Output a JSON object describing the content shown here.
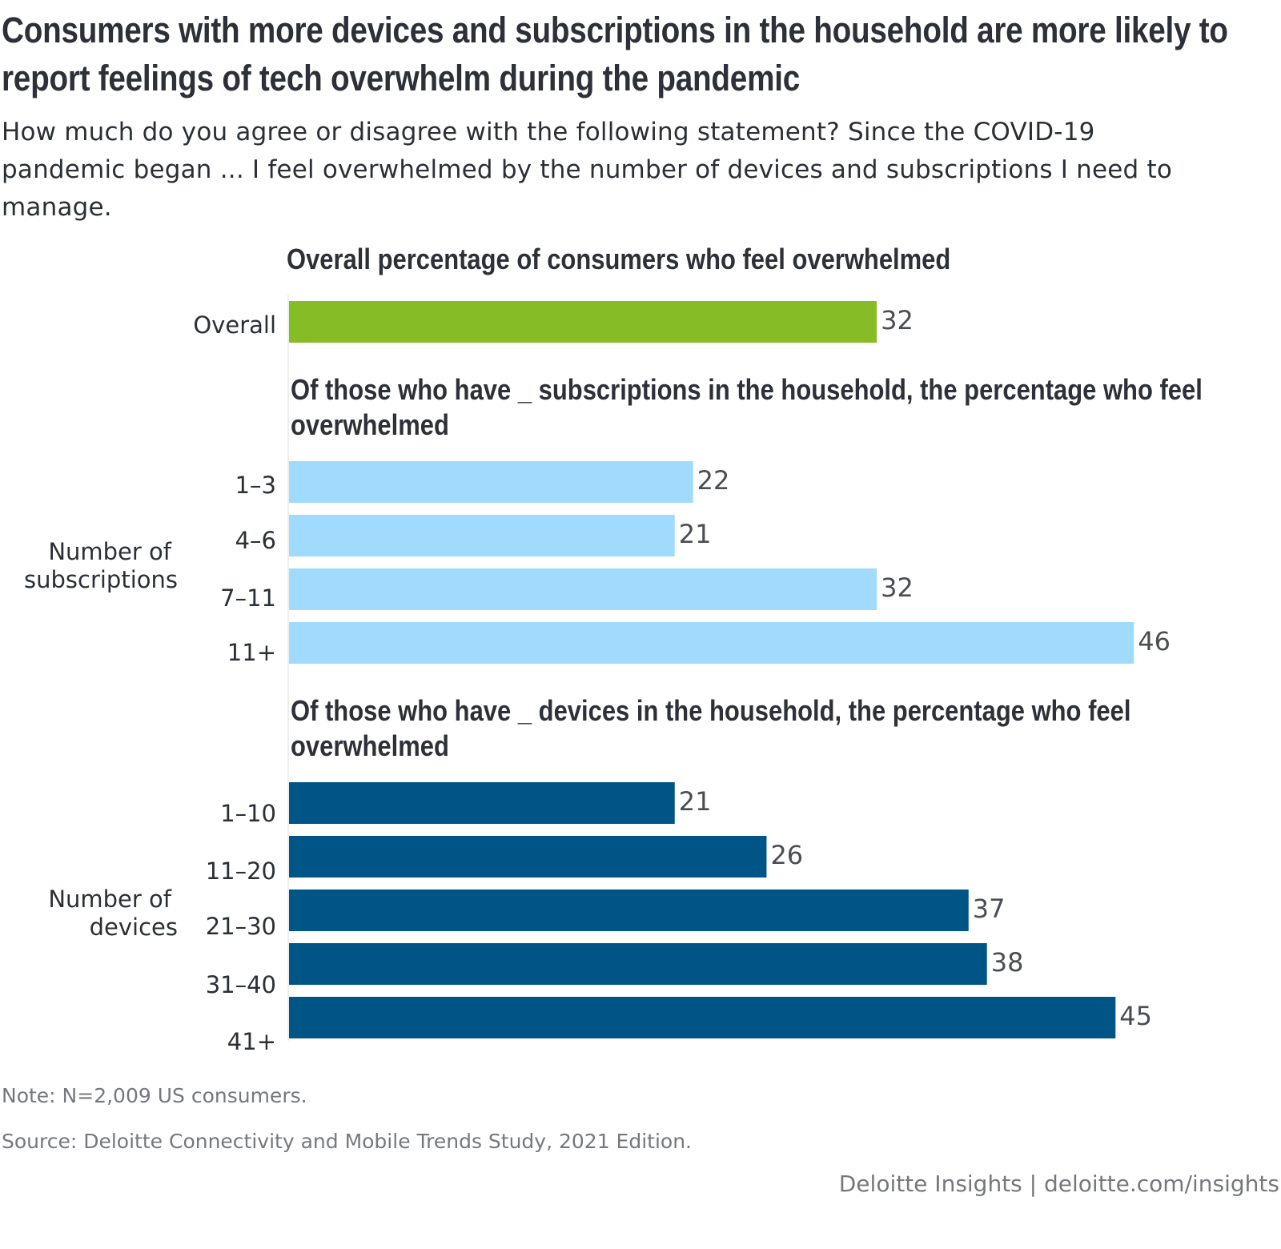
{
  "chart_data": {
    "type": "bar",
    "orientation": "horizontal",
    "title": "Consumers with more devices and subscriptions in the household are more likely to report feelings of tech overwhelm during the pandemic",
    "subtitle": "How much do you agree or disagree with the following statement? Since the COVID-19 pandemic began ... I feel overwhelmed by the number of devices and subscriptions I need to manage.",
    "xlim": [
      0,
      50
    ],
    "grid": false,
    "unit": "%",
    "panels": [
      {
        "id": "overall",
        "heading": "Overall percentage of consumers who feel overwhelmed",
        "group_label": "",
        "color": "#86bc25",
        "categories": [
          "Overall"
        ],
        "values": [
          32
        ]
      },
      {
        "id": "subscriptions",
        "heading": "Of those who have _ subscriptions in the household, the percentage who feel overwhelmed",
        "group_label": "Number of subscriptions",
        "color": "#a0dbfd",
        "categories": [
          "1–3",
          "4–6",
          "7–11",
          "11+"
        ],
        "values": [
          22,
          21,
          32,
          46
        ]
      },
      {
        "id": "devices",
        "heading": "Of those who have _ devices in the household, the percentage who feel overwhelmed",
        "group_label": "Number of devices",
        "color": "#005587",
        "categories": [
          "1–10",
          "11–20",
          "21–30",
          "31–40",
          "41+"
        ],
        "values": [
          21,
          26,
          37,
          38,
          45
        ]
      }
    ]
  },
  "footer": {
    "note": "Note: N=2,009 US consumers.",
    "source": "Source: Deloitte Connectivity and Mobile Trends Study, 2021 Edition.",
    "brand": "Deloitte Insights | deloitte.com/insights"
  },
  "group_label_lines": {
    "subscriptions": [
      "Number of",
      "subscriptions"
    ],
    "devices": [
      "Number of",
      "devices"
    ]
  }
}
